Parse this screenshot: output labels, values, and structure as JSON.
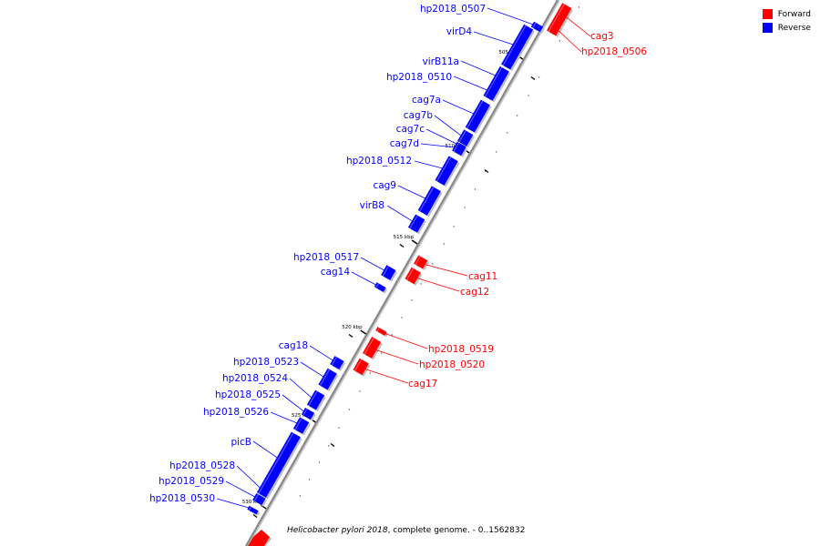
{
  "legend": [
    {
      "label": "Forward",
      "color": "#ff0000"
    },
    {
      "label": "Reverse",
      "color": "#0000ff"
    }
  ],
  "footer": {
    "organism": "Helicobacter pylori 2018",
    "description": ", complete genome. - 0..1562832"
  },
  "colors": {
    "forward": "#ff0000",
    "reverse": "#0000ff",
    "axis": "#888888"
  },
  "axis_ticks": [
    {
      "label": "505 kbp",
      "kbp": 505
    },
    {
      "label": "510 kbp",
      "kbp": 510
    },
    {
      "label": "515 kbp",
      "kbp": 515
    },
    {
      "label": "520 kbp",
      "kbp": 520
    },
    {
      "label": "525 kbp",
      "kbp": 525
    },
    {
      "label": "530 kbp",
      "kbp": 530
    }
  ],
  "features": [
    {
      "name": "hp2018_0507",
      "strand": "reverse"
    },
    {
      "name": "cag3",
      "strand": "forward"
    },
    {
      "name": "hp2018_0506",
      "strand": "forward"
    },
    {
      "name": "virD4",
      "strand": "reverse"
    },
    {
      "name": "virB11a",
      "strand": "reverse"
    },
    {
      "name": "hp2018_0510",
      "strand": "reverse"
    },
    {
      "name": "cag7a",
      "strand": "reverse"
    },
    {
      "name": "cag7b",
      "strand": "reverse"
    },
    {
      "name": "cag7c",
      "strand": "reverse"
    },
    {
      "name": "cag7d",
      "strand": "reverse"
    },
    {
      "name": "hp2018_0512",
      "strand": "reverse"
    },
    {
      "name": "cag9",
      "strand": "reverse"
    },
    {
      "name": "virB8",
      "strand": "reverse"
    },
    {
      "name": "hp2018_0517",
      "strand": "reverse"
    },
    {
      "name": "cag14",
      "strand": "reverse"
    },
    {
      "name": "cag11",
      "strand": "forward"
    },
    {
      "name": "cag12",
      "strand": "forward"
    },
    {
      "name": "hp2018_0519",
      "strand": "forward"
    },
    {
      "name": "hp2018_0520",
      "strand": "forward"
    },
    {
      "name": "cag17",
      "strand": "forward"
    },
    {
      "name": "cag18",
      "strand": "reverse"
    },
    {
      "name": "hp2018_0523",
      "strand": "reverse"
    },
    {
      "name": "hp2018_0524",
      "strand": "reverse"
    },
    {
      "name": "hp2018_0525",
      "strand": "reverse"
    },
    {
      "name": "hp2018_0526",
      "strand": "reverse"
    },
    {
      "name": "picB",
      "strand": "reverse"
    },
    {
      "name": "hp2018_0528",
      "strand": "reverse"
    },
    {
      "name": "hp2018_0529",
      "strand": "reverse"
    },
    {
      "name": "hp2018_0530",
      "strand": "reverse"
    }
  ]
}
